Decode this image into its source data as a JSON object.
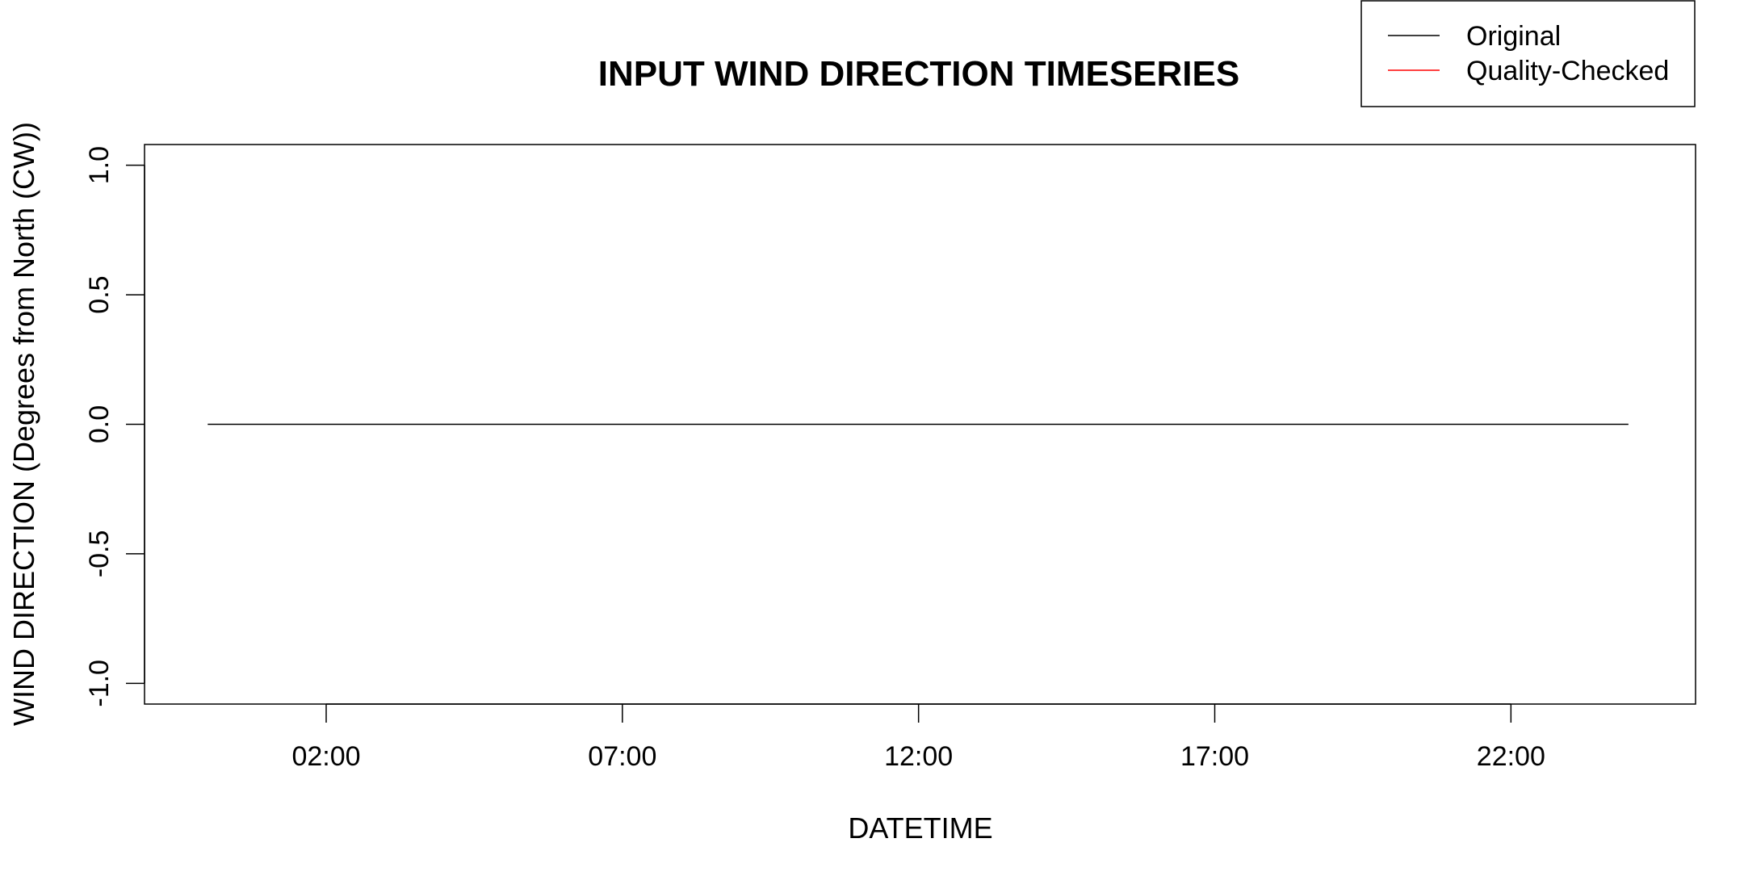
{
  "chart_data": {
    "type": "line",
    "title": "INPUT WIND DIRECTION TIMESERIES",
    "xlabel": "DATETIME",
    "ylabel": "WIND DIRECTION (Degrees from North (CW))",
    "x_ticks": [
      "02:00",
      "07:00",
      "12:00",
      "17:00",
      "22:00"
    ],
    "y_ticks": [
      -1.0,
      -0.5,
      0.0,
      0.5,
      1.0
    ],
    "y_tick_labels": [
      "-1.0",
      "-0.5",
      "0.0",
      "0.5",
      "1.0"
    ],
    "xlim": [
      "-01:04",
      "25:07"
    ],
    "ylim": [
      -1.08,
      1.08
    ],
    "grid": false,
    "legend_position": "top-right",
    "series": [
      {
        "name": "Original",
        "color": "#000000",
        "x": [
          "00:00",
          "23:59"
        ],
        "y": [
          0,
          0
        ]
      },
      {
        "name": "Quality-Checked",
        "color": "#ff0000",
        "x": [],
        "y": []
      }
    ]
  }
}
